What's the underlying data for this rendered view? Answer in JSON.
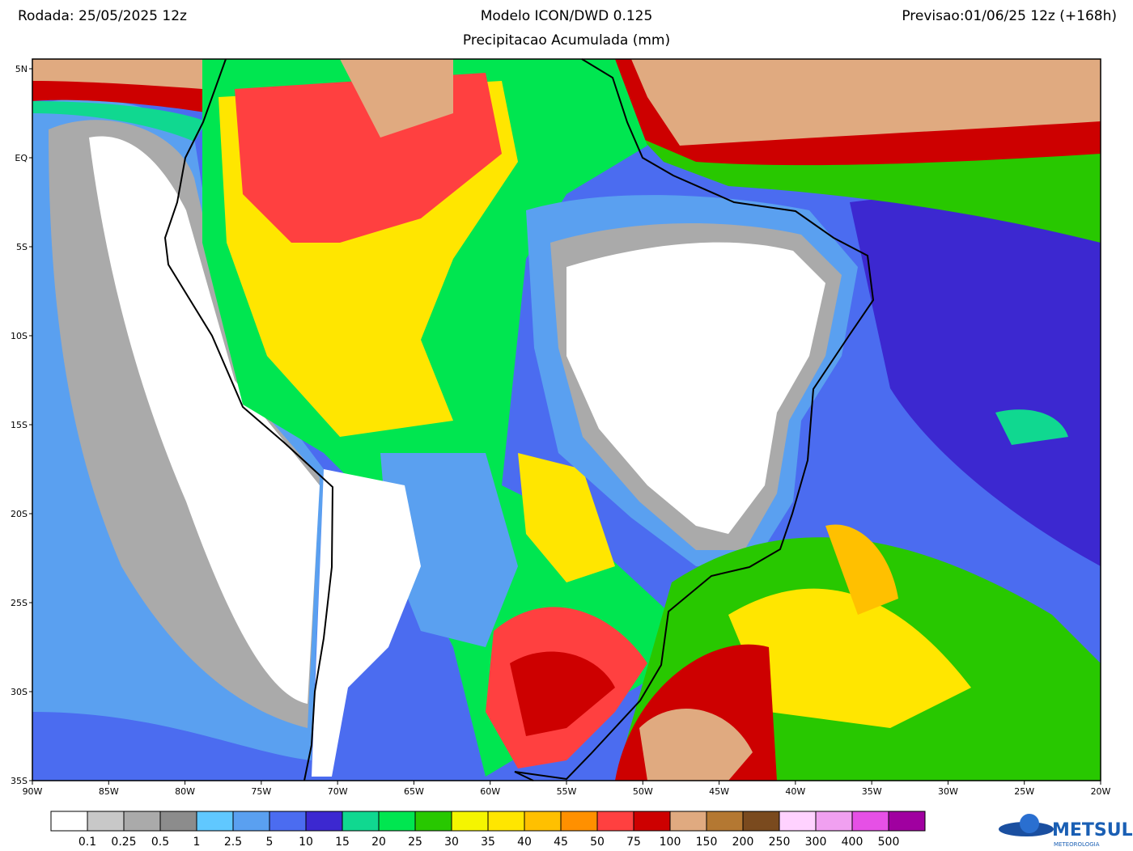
{
  "header": {
    "run": "Rodada: 25/05/2025 12z",
    "model": "Modelo ICON/DWD 0.125",
    "product": "Precipitacao Acumulada (mm)",
    "forecast": "Previsao:01/06/25 12z (+168h)"
  },
  "map": {
    "lat_labels": [
      "5N",
      "EQ",
      "5S",
      "10S",
      "15S",
      "20S",
      "25S",
      "30S",
      "35S"
    ],
    "lon_labels": [
      "90W",
      "85W",
      "80W",
      "75W",
      "70W",
      "65W",
      "60W",
      "55W",
      "50W",
      "45W",
      "40W",
      "35W",
      "30W",
      "25W",
      "20W"
    ]
  },
  "legend": {
    "colors": [
      "#ffffff",
      "#c8c8c8",
      "#aaaaaa",
      "#8c8c8c",
      "#60c8ff",
      "#5aa0f0",
      "#4b6cf0",
      "#3c28d0",
      "#10d890",
      "#00e650",
      "#28c800",
      "#f5f500",
      "#ffe600",
      "#ffc000",
      "#ff9000",
      "#ff4040",
      "#cd0000",
      "#e0aa80",
      "#b47832",
      "#7a4a1e",
      "#ffd2ff",
      "#f0a0f0",
      "#e650e6",
      "#a000a0"
    ],
    "labels": [
      "0.1",
      "0.25",
      "0.5",
      "1",
      "2.5",
      "5",
      "10",
      "15",
      "20",
      "25",
      "30",
      "35",
      "40",
      "45",
      "50",
      "75",
      "100",
      "150",
      "200",
      "250",
      "300",
      "400",
      "500"
    ]
  },
  "logo": {
    "name": "METSUL",
    "tagline": "METEOROLOGIA"
  }
}
